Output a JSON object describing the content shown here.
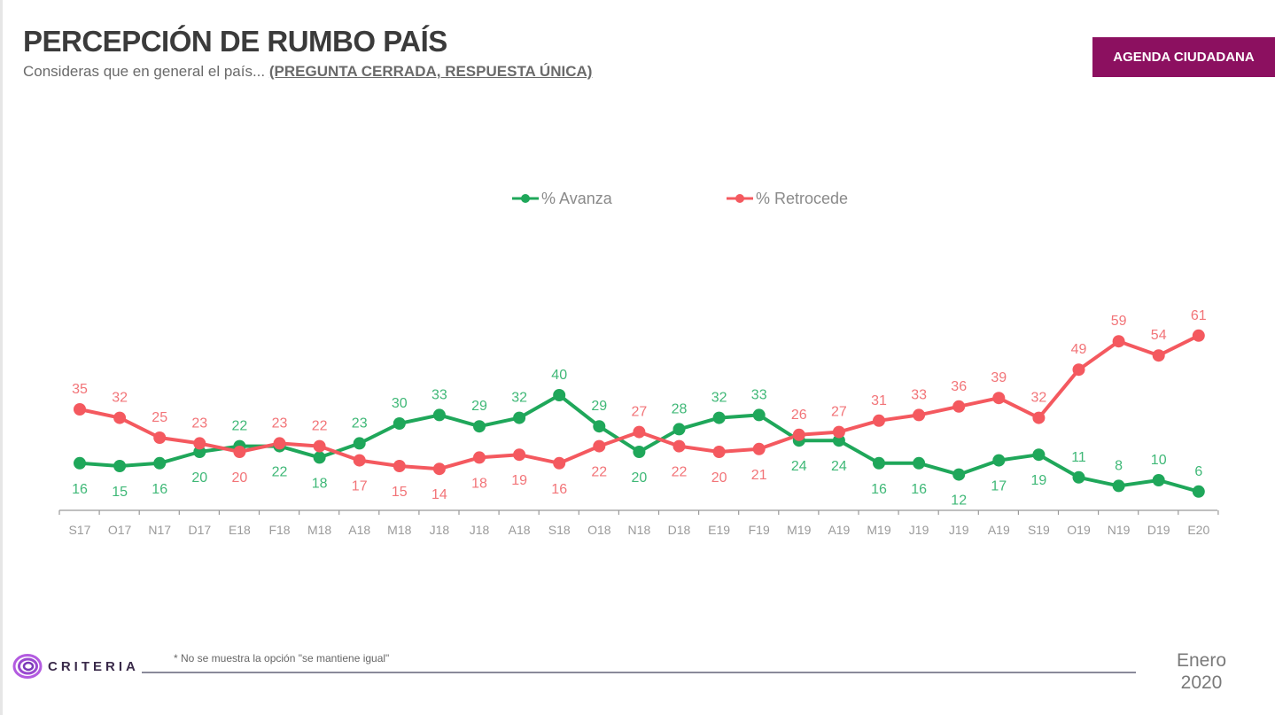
{
  "header": {
    "title": "PERCEPCIÓN DE RUMBO PAÍS",
    "subtitle": "Consideras que en general el país...",
    "subtitle_question_type": "(PREGUNTA CERRADA, RESPUESTA ÚNICA)",
    "badge": "AGENDA CIUDADANA"
  },
  "footer": {
    "logo_text": "CRITERIA",
    "footnote": "* No se muestra la opción \"se mantiene igual\"",
    "date_month": "Enero",
    "date_year": "2020"
  },
  "colors": {
    "avanza": "#1fa75a",
    "retrocede": "#f4595f",
    "badge": "#8c1060"
  },
  "chart_data": {
    "type": "line",
    "title": "",
    "xlabel": "",
    "ylabel": "",
    "legend_position": "top-center",
    "grid": false,
    "ylim": [
      0,
      70
    ],
    "categories": [
      "S17",
      "O17",
      "N17",
      "D17",
      "E18",
      "F18",
      "M18",
      "A18",
      "M18",
      "J18",
      "J18",
      "A18",
      "S18",
      "O18",
      "N18",
      "D18",
      "E19",
      "F19",
      "M19",
      "A19",
      "M19",
      "J19",
      "J19",
      "A19",
      "S19",
      "O19",
      "N19",
      "D19",
      "E20"
    ],
    "series": [
      {
        "name": "% Avanza",
        "color": "#1fa75a",
        "values": [
          16,
          15,
          16,
          20,
          22,
          22,
          18,
          23,
          30,
          33,
          29,
          32,
          40,
          29,
          20,
          28,
          32,
          33,
          24,
          24,
          16,
          16,
          12,
          17,
          19,
          11,
          8,
          10,
          6
        ],
        "label_positions": [
          "below",
          "below",
          "below",
          "below",
          "above",
          "below",
          "below",
          "above",
          "above",
          "above",
          "above",
          "above",
          "above",
          "above",
          "below",
          "above",
          "above",
          "above",
          "below",
          "below",
          "below",
          "below",
          "below",
          "below",
          "below",
          "above",
          "above",
          "above",
          "above"
        ]
      },
      {
        "name": "% Retrocede",
        "color": "#f4595f",
        "values": [
          35,
          32,
          25,
          23,
          20,
          23,
          22,
          17,
          15,
          14,
          18,
          19,
          16,
          22,
          27,
          22,
          20,
          21,
          26,
          27,
          31,
          33,
          36,
          39,
          32,
          49,
          59,
          54,
          61
        ],
        "label_positions": [
          "above",
          "above",
          "above",
          "above",
          "below",
          "above",
          "above",
          "below",
          "below",
          "below",
          "below",
          "below",
          "below",
          "below",
          "above",
          "below",
          "below",
          "below",
          "above",
          "above",
          "above",
          "above",
          "above",
          "above",
          "above",
          "above",
          "above",
          "above",
          "above"
        ]
      }
    ]
  }
}
